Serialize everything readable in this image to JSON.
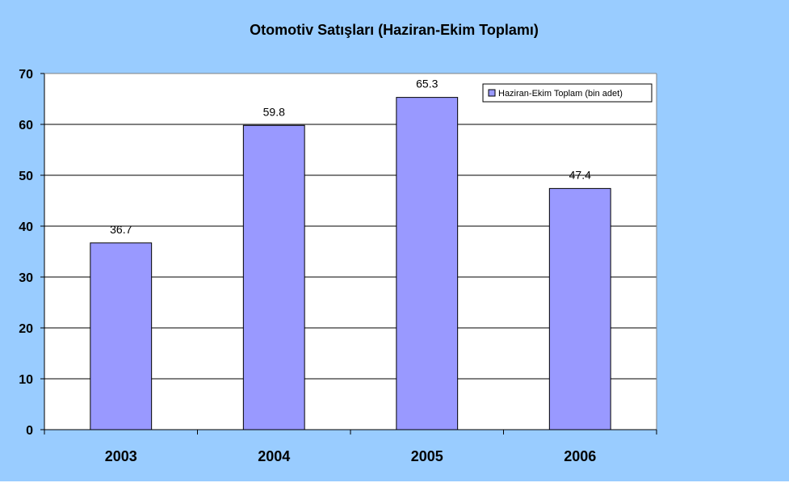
{
  "colors": {
    "chart_background": "#99CCFF",
    "plot_background": "#FFFFFF",
    "bar_fill": "#9999FF",
    "bar_stroke": "#000000",
    "gridline": "#000000"
  },
  "chart_data": {
    "type": "bar",
    "title": "Otomotiv Satışları (Haziran-Ekim Toplamı)",
    "xlabel": "",
    "ylabel": "",
    "categories": [
      "2003",
      "2004",
      "2005",
      "2006"
    ],
    "series": [
      {
        "name": "Haziran-Ekim Toplam (bin adet)",
        "values": [
          36.7,
          59.8,
          65.3,
          47.4
        ]
      }
    ],
    "ylim": [
      0,
      70
    ],
    "yticks": [
      "0",
      "10",
      "20",
      "30",
      "40",
      "50",
      "60",
      "70"
    ],
    "data_labels": [
      "36.7",
      "59.8",
      "65.3",
      "47.4"
    ],
    "grid": true,
    "legend_position": "top-right"
  }
}
